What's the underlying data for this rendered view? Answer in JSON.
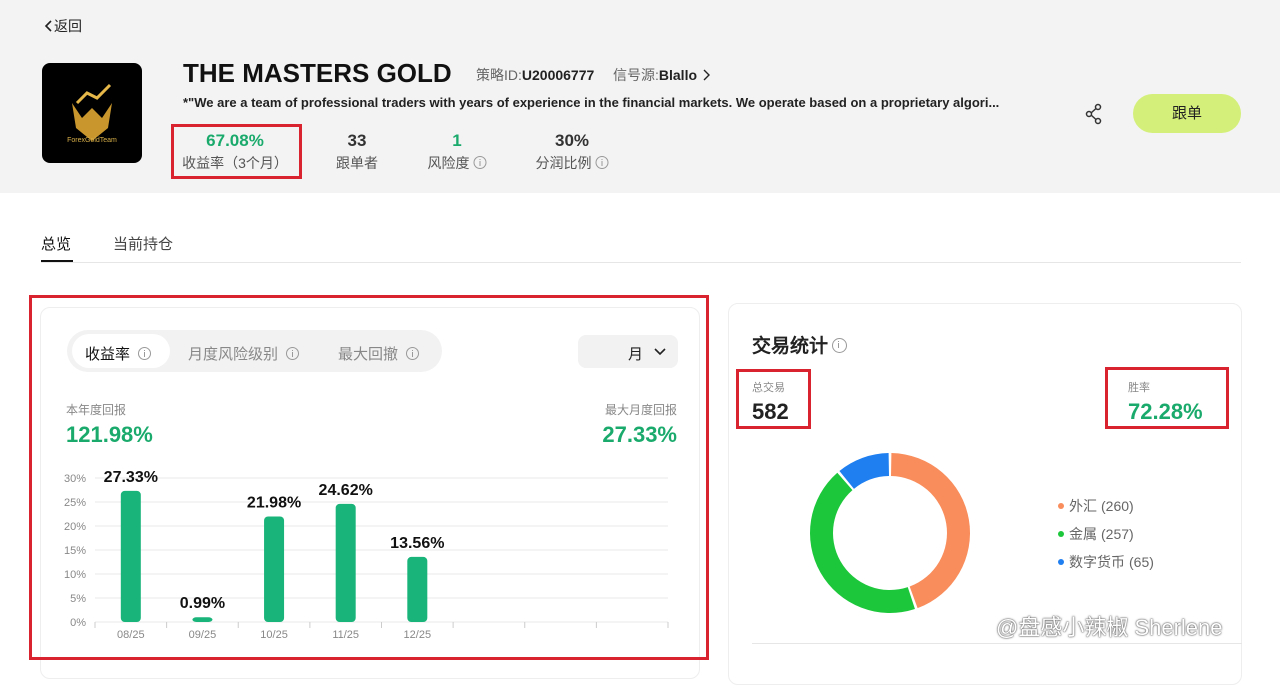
{
  "back": "返回",
  "header": {
    "logo_text": "ForexGoldTeam",
    "title": "THE MASTERS GOLD",
    "strategy_id_label": "策略ID:",
    "strategy_id": "U20006777",
    "source_label": "信号源:",
    "source": "Blallo",
    "description": "*\"We are a team of professional traders with years of experience in the financial markets. We operate based on a proprietary algori...",
    "stats": [
      {
        "value": "67.08%",
        "label": "收益率（3个月）"
      },
      {
        "value": "33",
        "label": "跟单者"
      },
      {
        "value": "1",
        "label": "风险度"
      },
      {
        "value": "30%",
        "label": "分润比例"
      }
    ],
    "follow": "跟单"
  },
  "tabs": [
    "总览",
    "当前持仓"
  ],
  "returns": {
    "tabs": [
      "收益率",
      "月度风险级别",
      "最大回撤"
    ],
    "period": "月",
    "ytd_label": "本年度回报",
    "ytd": "121.98%",
    "max_label": "最大月度回报",
    "max": "27.33%",
    "chart": {
      "type": "bar",
      "categories": [
        "08/25",
        "09/25",
        "10/25",
        "11/25",
        "12/25",
        null,
        null,
        null
      ],
      "values": [
        27.33,
        0.99,
        21.98,
        24.62,
        13.56,
        null,
        null,
        null
      ],
      "value_labels": [
        "27.33%",
        "0.99%",
        "21.98%",
        "24.62%",
        "13.56%",
        null,
        null,
        null
      ],
      "color": "#19b47a",
      "ylim": [
        0,
        30
      ],
      "yticks": [
        {
          "value": 0,
          "label": "0%"
        },
        {
          "value": 5,
          "label": "5%"
        },
        {
          "value": 10,
          "label": "10%"
        },
        {
          "value": 15,
          "label": "15%"
        },
        {
          "value": 20,
          "label": "20%"
        },
        {
          "value": 25,
          "label": "25%"
        },
        {
          "value": 30,
          "label": "30%"
        }
      ],
      "grid": true
    }
  },
  "trade_stats": {
    "title": "交易统计",
    "total_label": "总交易",
    "total": "582",
    "win_label": "胜率",
    "win": "72.28%",
    "chart": {
      "type": "pie",
      "categories": [
        "外汇",
        "金属",
        "数字货币"
      ],
      "values": [
        260,
        257,
        65
      ],
      "value_labels": [
        "(260)",
        "(257)",
        "(65)"
      ],
      "colors": [
        "#f98d5b",
        "#1dc73b",
        "#1f7ff0"
      ]
    }
  },
  "watermark": "@盘感小辣椒 Sherlene"
}
